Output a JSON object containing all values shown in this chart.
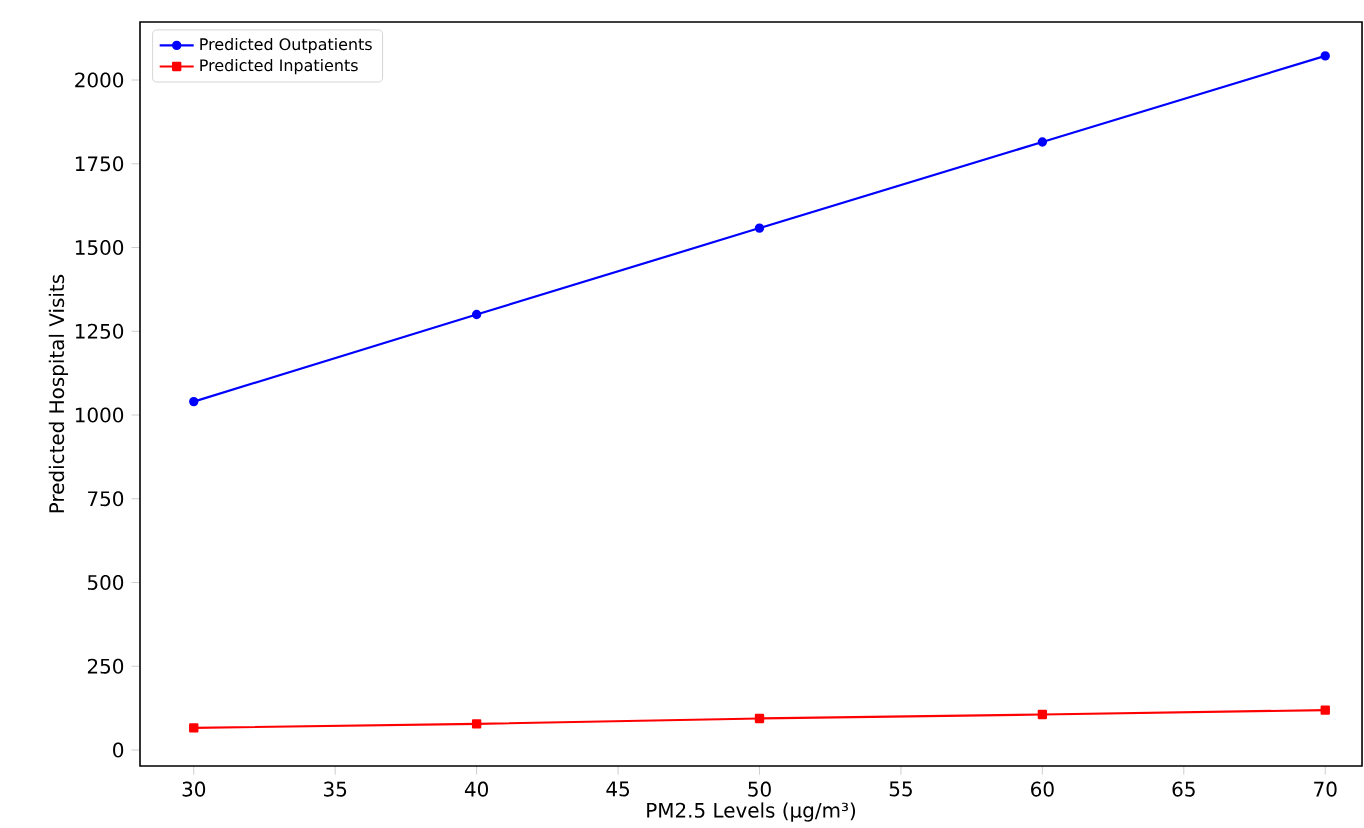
{
  "chart_data": {
    "type": "line",
    "xlabel": "PM2.5 Levels (µg/m³)",
    "ylabel": "Predicted Hospital Visits",
    "x": [
      30,
      40,
      50,
      60,
      70
    ],
    "series": [
      {
        "name": "Predicted Outpatients",
        "color": "#0000ff",
        "marker": "circle",
        "values": [
          1040,
          1300,
          1558,
          1815,
          2072
        ]
      },
      {
        "name": "Predicted Inpatients",
        "color": "#ff0000",
        "marker": "square",
        "values": [
          66,
          78,
          94,
          106,
          119
        ]
      }
    ],
    "xlim": [
      28.1,
      71.3
    ],
    "ylim": [
      -48,
      2173
    ],
    "xticks": [
      30,
      35,
      40,
      45,
      50,
      55,
      60,
      65,
      70
    ],
    "yticks": [
      0,
      250,
      500,
      750,
      1000,
      1250,
      1500,
      1750,
      2000
    ],
    "legend": "top left",
    "grid": false,
    "line_style": "solid"
  }
}
